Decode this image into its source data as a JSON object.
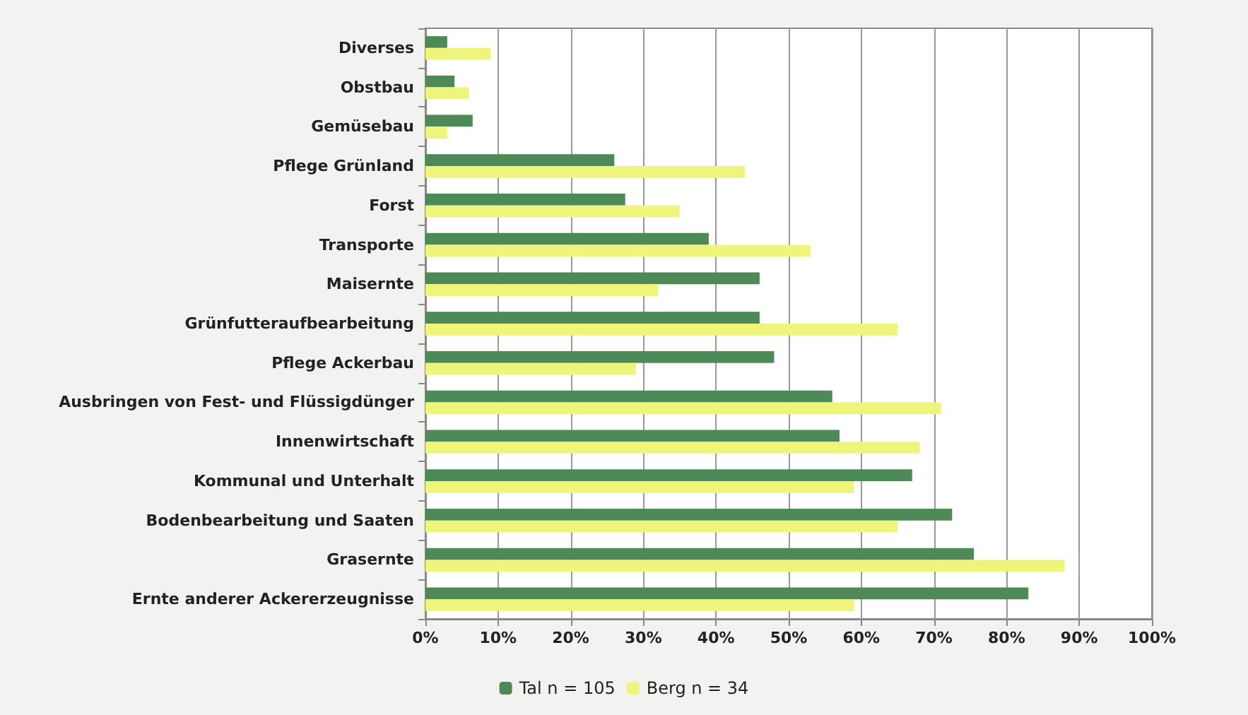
{
  "chart_data": {
    "type": "bar",
    "orientation": "horizontal",
    "categories": [
      "Diverses",
      "Obstbau",
      "Gemüsebau",
      "Pflege Grünland",
      "Forst",
      "Transporte",
      "Maisernte",
      "Grünfutteraufbearbeitung",
      "Pflege Ackerbau",
      "Ausbringen von Fest- und Flüssigdünger",
      "Innenwirtschaft",
      "Kommunal und Unterhalt",
      "Bodenbearbeitung und Saaten",
      "Grasernte",
      "Ernte anderer Ackererzeugnisse"
    ],
    "series": [
      {
        "name": "Tal n = 105",
        "color": "#4e8a57",
        "values": [
          3,
          4,
          6.5,
          26,
          27.5,
          39,
          46,
          46,
          48,
          56,
          57,
          67,
          72.5,
          75.5,
          83
        ]
      },
      {
        "name": "Berg n = 34",
        "color": "#eef57a",
        "values": [
          9,
          6,
          3,
          44,
          35,
          53,
          32,
          65,
          29,
          71,
          68,
          59,
          65,
          88,
          59
        ]
      }
    ],
    "xlim": [
      0,
      100
    ],
    "xticks": [
      {
        "value": 0,
        "label": "0%"
      },
      {
        "value": 10,
        "label": "10%"
      },
      {
        "value": 20,
        "label": "20%"
      },
      {
        "value": 30,
        "label": "30%"
      },
      {
        "value": 40,
        "label": "40%"
      },
      {
        "value": 50,
        "label": "50%"
      },
      {
        "value": 60,
        "label": "60%"
      },
      {
        "value": 70,
        "label": "70%"
      },
      {
        "value": 80,
        "label": "80%"
      },
      {
        "value": 90,
        "label": "90%"
      },
      {
        "value": 100,
        "label": "100%"
      }
    ],
    "grid": "x",
    "legend": "bottom"
  }
}
